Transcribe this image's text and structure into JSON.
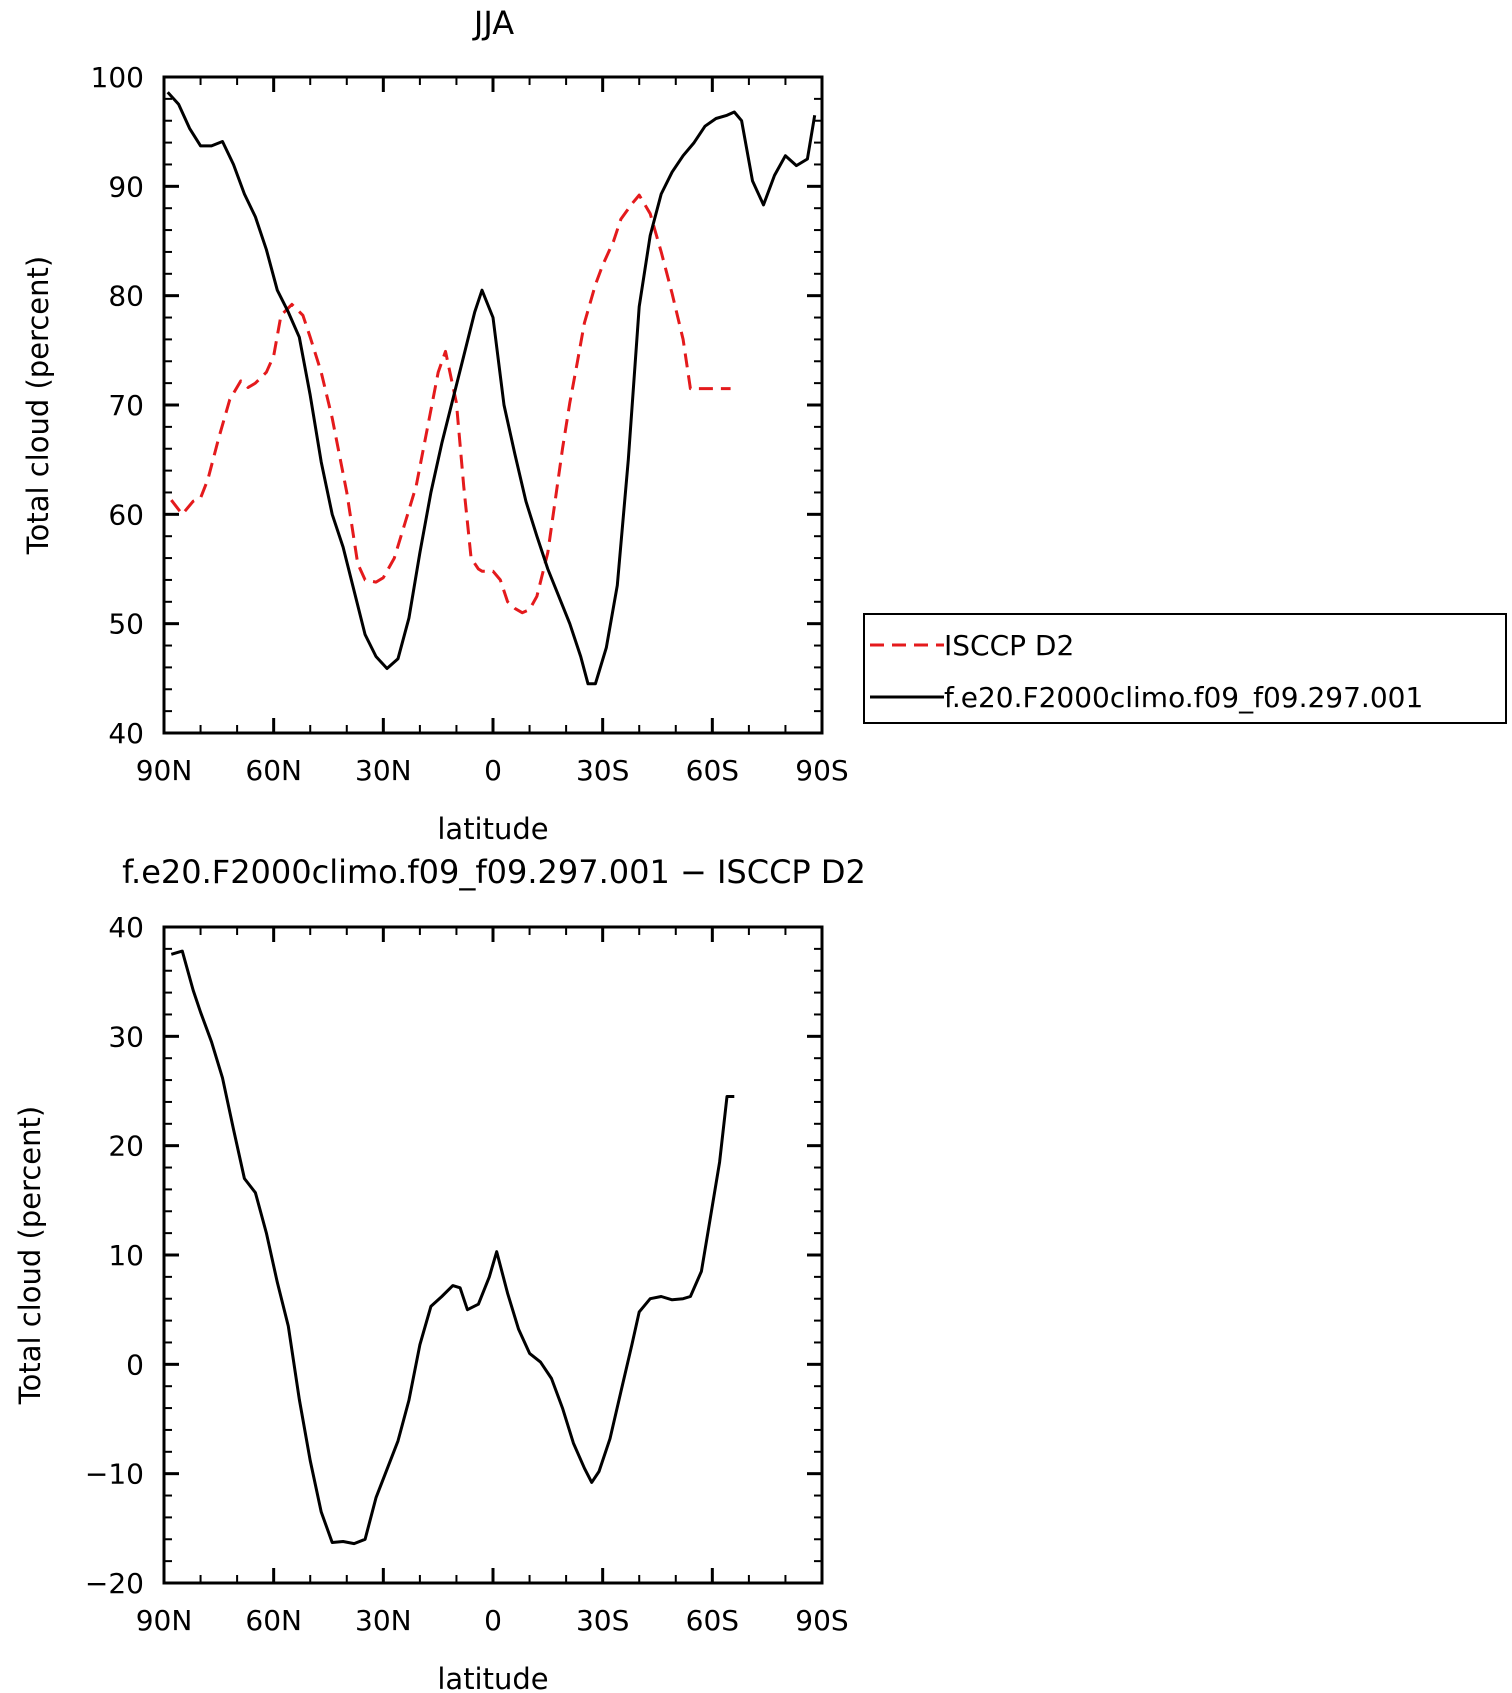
{
  "chart_data": [
    {
      "type": "line",
      "title": "JJA",
      "xlabel": "latitude",
      "ylabel": "Total cloud (percent)",
      "xlim": [
        90,
        -90
      ],
      "ylim": [
        40,
        100
      ],
      "x_ticks": [
        90,
        60,
        30,
        0,
        -30,
        -60,
        -90
      ],
      "x_tick_labels": [
        "90N",
        "60N",
        "30N",
        "0",
        "30S",
        "60S",
        "90S"
      ],
      "y_ticks": [
        40,
        50,
        60,
        70,
        80,
        90,
        100
      ],
      "y_tick_labels": [
        "40",
        "50",
        "60",
        "70",
        "80",
        "90",
        "100"
      ],
      "grid": false,
      "legend_position": "right",
      "series": [
        {
          "name": "ISCCP D2",
          "color": "#e41a1c",
          "dash": "dashed",
          "x": [
            88,
            85,
            82,
            80,
            78,
            75,
            72,
            69,
            67,
            65,
            62,
            60,
            58,
            55,
            52,
            50,
            47,
            44,
            40,
            37,
            35,
            32,
            30,
            27,
            24,
            21,
            18,
            15,
            13,
            10,
            8,
            6,
            4,
            3,
            0,
            -2,
            -4,
            -6,
            -8,
            -10,
            -12,
            -15,
            -17,
            -19,
            -21,
            -23,
            -25,
            -28,
            -30,
            -33,
            -35,
            -38,
            -40,
            -43,
            -46,
            -49,
            -52,
            -54,
            -55,
            -57,
            -59,
            -61,
            -63,
            -65
          ],
          "y": [
            61.3,
            60.0,
            61.2,
            61.5,
            63.2,
            67.0,
            70.5,
            72.2,
            71.6,
            72.0,
            73.0,
            74.5,
            78.2,
            79.2,
            78.2,
            76.2,
            73.0,
            68.8,
            62.0,
            55.5,
            54.0,
            53.8,
            54.2,
            56.0,
            59.3,
            62.6,
            67.8,
            73.0,
            74.9,
            70.2,
            62.5,
            56.0,
            55.0,
            54.8,
            54.8,
            54.0,
            52.0,
            51.4,
            51.0,
            51.3,
            52.5,
            56.5,
            61.2,
            66.0,
            70.2,
            73.8,
            77.5,
            81.0,
            82.8,
            85.0,
            87.0,
            88.4,
            89.2,
            87.5,
            84.0,
            80.2,
            76.0,
            71.5,
            71.5,
            71.5,
            71.5,
            71.5,
            71.5,
            71.5
          ]
        },
        {
          "name": "f.e20.F2000climo.f09_f09.297.001",
          "color": "#000000",
          "dash": "solid",
          "x": [
            89,
            86,
            83,
            80,
            77,
            74,
            71,
            68,
            65,
            62,
            59,
            56,
            53,
            50,
            47,
            44,
            41,
            38,
            35,
            32,
            29,
            26,
            23,
            20,
            17,
            14,
            11,
            8,
            5,
            3,
            0,
            -3,
            -6,
            -9,
            -12,
            -15,
            -18,
            -21,
            -24,
            -26,
            -28,
            -31,
            -34,
            -37,
            -40,
            -43,
            -46,
            -49,
            -52,
            -55,
            -58,
            -61,
            -64,
            -66,
            -68,
            -71,
            -74,
            -77,
            -80,
            -83,
            -86,
            -88
          ],
          "y": [
            98.6,
            97.5,
            95.3,
            93.7,
            93.7,
            94.1,
            92.0,
            89.3,
            87.2,
            84.2,
            80.5,
            78.5,
            76.2,
            70.9,
            64.8,
            60.0,
            57.0,
            53.0,
            49.0,
            47.0,
            45.9,
            46.8,
            50.5,
            56.5,
            62.0,
            66.5,
            70.5,
            74.5,
            78.5,
            80.5,
            78.0,
            70.0,
            65.5,
            61.2,
            58.0,
            55.0,
            52.5,
            50.0,
            47.0,
            44.5,
            44.5,
            47.8,
            53.5,
            65.0,
            79.0,
            85.5,
            89.3,
            91.3,
            92.8,
            94.0,
            95.5,
            96.2,
            96.5,
            96.8,
            96.0,
            90.5,
            88.3,
            91.0,
            92.8,
            91.9,
            92.5,
            96.5
          ]
        }
      ]
    },
    {
      "type": "line",
      "title": "f.e20.F2000climo.f09_f09.297.001 − ISCCP D2",
      "xlabel": "latitude",
      "ylabel": "Total cloud (percent)",
      "xlim": [
        90,
        -90
      ],
      "ylim": [
        -20,
        40
      ],
      "x_ticks": [
        90,
        60,
        30,
        0,
        -30,
        -60,
        -90
      ],
      "x_tick_labels": [
        "90N",
        "60N",
        "30N",
        "0",
        "30S",
        "60S",
        "90S"
      ],
      "y_ticks": [
        -20,
        -10,
        0,
        10,
        20,
        30,
        40
      ],
      "y_tick_labels": [
        "−20",
        "−10",
        "0",
        "10",
        "20",
        "30",
        "40"
      ],
      "grid": false,
      "series": [
        {
          "color": "#000000",
          "dash": "solid",
          "x": [
            88,
            85,
            82,
            80,
            77,
            74,
            71,
            68,
            65,
            62,
            59,
            56,
            53,
            50,
            47,
            44,
            41,
            38,
            35,
            32,
            29,
            26,
            23,
            20,
            17,
            14,
            11,
            9,
            7,
            4,
            1,
            -1,
            -4,
            -7,
            -10,
            -13,
            -16,
            -19,
            -22,
            -25,
            -27,
            -29,
            -32,
            -35,
            -38,
            -40,
            -43,
            -46,
            -49,
            -52,
            -54,
            -57,
            -59,
            -62,
            -64,
            -66
          ],
          "y": [
            37.5,
            37.8,
            34.2,
            32.2,
            29.5,
            26.2,
            21.5,
            17.0,
            15.7,
            12.0,
            7.5,
            3.5,
            -3.2,
            -8.8,
            -13.5,
            -16.3,
            -16.2,
            -16.4,
            -16.0,
            -12.2,
            -9.6,
            -7.0,
            -3.3,
            1.8,
            5.3,
            6.2,
            7.2,
            7.0,
            5.0,
            5.5,
            8.0,
            10.3,
            6.5,
            3.2,
            1.0,
            0.2,
            -1.3,
            -4.0,
            -7.2,
            -9.5,
            -10.8,
            -9.8,
            -6.8,
            -2.5,
            1.8,
            4.8,
            6.0,
            6.2,
            5.9,
            6.0,
            6.2,
            8.5,
            12.5,
            18.5,
            24.5,
            24.5
          ]
        }
      ]
    }
  ]
}
